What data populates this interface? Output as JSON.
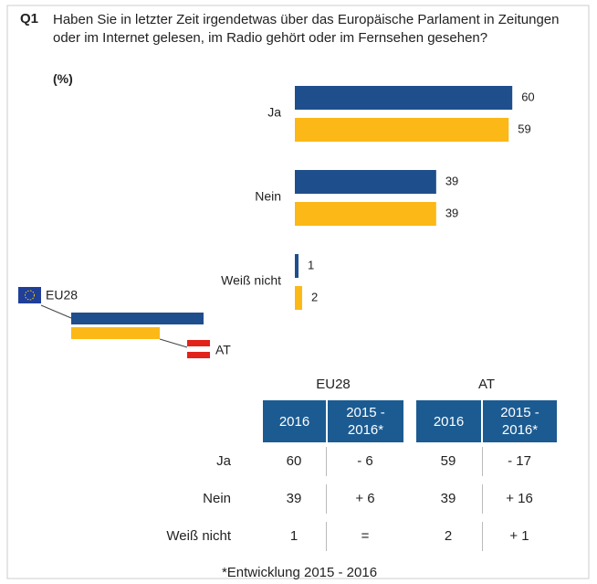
{
  "chart_data": {
    "type": "hbar",
    "label": "Q1",
    "title": "Haben Sie in letzter Zeit irgendetwas über das Europäische Parlament in Zeitungen oder im Internet gelesen, im Radio gehört oder im Fernsehen gesehen?",
    "subtitle": "(%)",
    "categories": [
      "Ja",
      "Nein",
      "Weiß nicht"
    ],
    "series": [
      {
        "name": "EU28",
        "color": "#1f4e8c",
        "values": [
          60,
          39,
          1
        ]
      },
      {
        "name": "AT",
        "color": "#fbb817",
        "values": [
          59,
          39,
          2
        ]
      }
    ]
  },
  "table": {
    "groups": [
      "EU28",
      "AT"
    ],
    "columns": [
      "2016",
      "2015 - 2016*",
      "2016",
      "2015 - 2016*"
    ],
    "rows": [
      {
        "label": "Ja",
        "cells": [
          60,
          "- 6",
          59,
          "- 17"
        ]
      },
      {
        "label": "Nein",
        "cells": [
          39,
          "+ 6",
          39,
          "+ 16"
        ]
      },
      {
        "label": "Weiß nicht",
        "cells": [
          1,
          "=",
          2,
          "+ 1"
        ]
      }
    ],
    "footnote": "*Entwicklung 2015 - 2016"
  }
}
